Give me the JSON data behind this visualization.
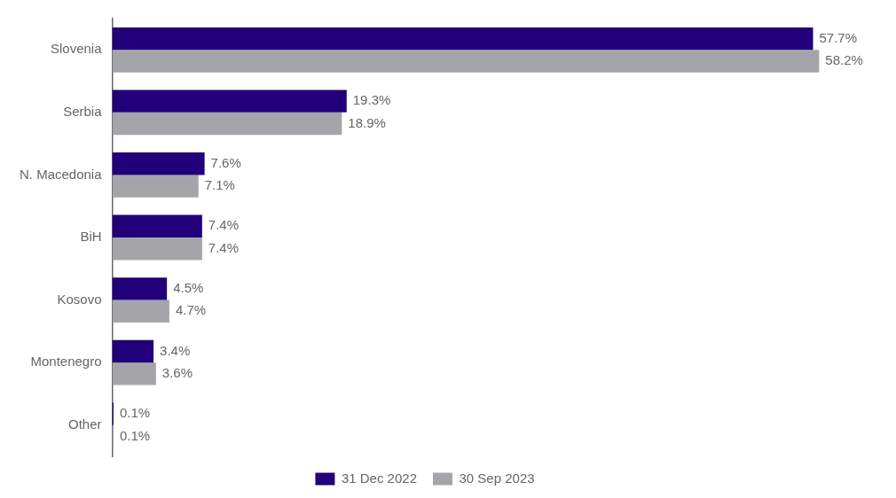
{
  "chart_data": {
    "type": "bar",
    "orientation": "horizontal",
    "categories": [
      "Slovenia",
      "Serbia",
      "N. Macedonia",
      "BiH",
      "Kosovo",
      "Montenegro",
      "Other"
    ],
    "series": [
      {
        "name": "31 Dec 2022",
        "color": "#22007a",
        "values": [
          57.7,
          19.3,
          7.6,
          7.4,
          4.5,
          3.4,
          0.1
        ],
        "value_labels": [
          "57.7%",
          "19.3%",
          "7.6%",
          "7.4%",
          "4.5%",
          "3.4%",
          "0.1%"
        ]
      },
      {
        "name": "30 Sep 2023",
        "color": "#a5a5a9",
        "values": [
          58.2,
          18.9,
          7.1,
          7.4,
          4.7,
          3.6,
          0.1
        ],
        "value_labels": [
          "58.2%",
          "18.9%",
          "7.1%",
          "7.4%",
          "4.7%",
          "3.6%",
          "0.1%"
        ]
      }
    ],
    "tick_labels": "y",
    "grid": false,
    "legend": "bottom"
  }
}
